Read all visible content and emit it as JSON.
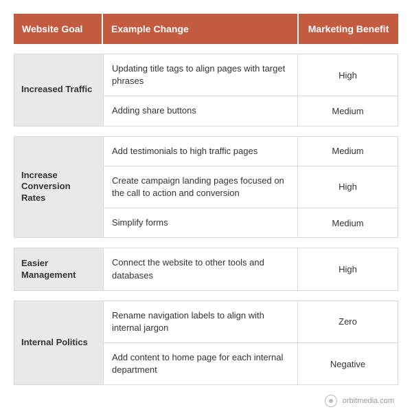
{
  "header": {
    "goal": "Website Goal",
    "change": "Example Change",
    "benefit": "Marketing Benefit",
    "bg_color": "#c35b40",
    "text_color": "#ffffff"
  },
  "col_widths": {
    "goal": 130,
    "benefit": 145
  },
  "groups": [
    {
      "goal": "Increased Traffic",
      "rows": [
        {
          "change": "Updating title tags to align pages with target phrases",
          "benefit": "High"
        },
        {
          "change": "Adding share buttons",
          "benefit": "Medium"
        }
      ]
    },
    {
      "goal": "Increase Conversion Rates",
      "rows": [
        {
          "change": "Add testimonials to high traffic pages",
          "benefit": "Medium"
        },
        {
          "change": "Create campaign landing pages focused on the call to action and conversion",
          "benefit": "High"
        },
        {
          "change": "Simplify forms",
          "benefit": "Medium"
        }
      ]
    },
    {
      "goal": "Easier Management",
      "rows": [
        {
          "change": "Connect the website to other tools and databases",
          "benefit": "High"
        }
      ]
    },
    {
      "goal": "Internal Politics",
      "rows": [
        {
          "change": "Rename navigation labels to align with internal jargon",
          "benefit": "Zero"
        },
        {
          "change": "Add content to home page for each internal department",
          "benefit": "Negative"
        }
      ]
    }
  ],
  "footer": {
    "text": "orbitmedia.com"
  },
  "colors": {
    "goal_bg": "#e9e9e9",
    "border": "#d9d9d9",
    "text": "#333333",
    "footer_text": "#999999"
  },
  "fonts": {
    "header_size": 14,
    "body_size": 13,
    "footer_size": 11
  }
}
